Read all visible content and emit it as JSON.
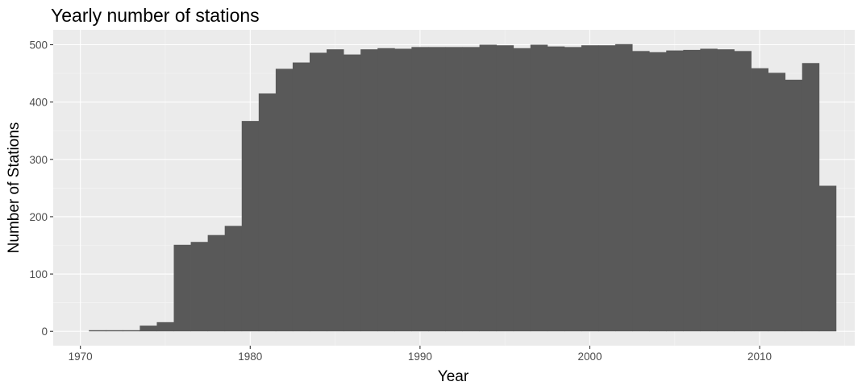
{
  "chart_data": {
    "type": "bar",
    "title": "Yearly number of stations",
    "xlabel": "Year",
    "ylabel": "Number of Stations",
    "x_ticks": [
      "1970",
      "1980",
      "1990",
      "2000",
      "2010"
    ],
    "y_ticks": [
      "0",
      "100",
      "200",
      "300",
      "400",
      "500"
    ],
    "xlim": [
      1968.4,
      2015.6
    ],
    "ylim": [
      -25,
      526
    ],
    "bar_color": "#595959",
    "panel_color": "#ebebeb",
    "grid": true,
    "categories": [
      1971,
      1972,
      1973,
      1974,
      1975,
      1976,
      1977,
      1978,
      1979,
      1980,
      1981,
      1982,
      1983,
      1984,
      1985,
      1986,
      1987,
      1988,
      1989,
      1990,
      1991,
      1992,
      1993,
      1994,
      1995,
      1996,
      1997,
      1998,
      1999,
      2000,
      2001,
      2002,
      2003,
      2004,
      2005,
      2006,
      2007,
      2008,
      2009,
      2010,
      2011,
      2012,
      2013,
      2014
    ],
    "values": [
      2,
      2,
      2,
      10,
      16,
      151,
      156,
      168,
      184,
      367,
      415,
      458,
      469,
      486,
      492,
      483,
      492,
      494,
      493,
      496,
      496,
      496,
      496,
      500,
      499,
      494,
      500,
      497,
      496,
      499,
      499,
      501,
      489,
      487,
      490,
      491,
      493,
      492,
      489,
      459,
      451,
      439,
      468,
      254
    ]
  }
}
